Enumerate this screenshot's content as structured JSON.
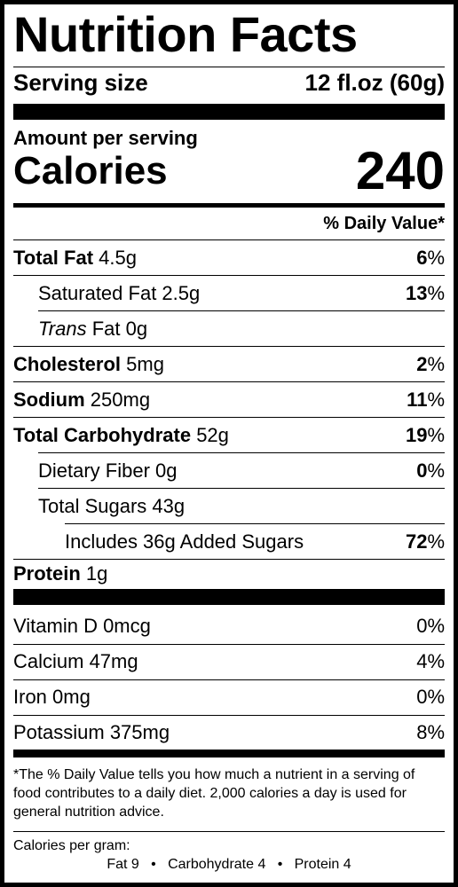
{
  "title": "Nutrition Facts",
  "serving": {
    "label": "Serving size",
    "value": "12 fl.oz (60g)"
  },
  "amount_per_serving": "Amount per serving",
  "calories": {
    "label": "Calories",
    "value": "240"
  },
  "dv_header": "% Daily Value*",
  "nutrients": {
    "total_fat": {
      "label": "Total Fat",
      "amount": "4.5g",
      "dv_num": "6",
      "dv_pct": "%"
    },
    "sat_fat": {
      "label": "Saturated Fat 2.5g",
      "dv_num": "13",
      "dv_pct": "%"
    },
    "trans_fat": {
      "italic": "Trans",
      "label": " Fat 0g"
    },
    "cholesterol": {
      "label": "Cholesterol",
      "amount": "5mg",
      "dv_num": "2",
      "dv_pct": "%"
    },
    "sodium": {
      "label": "Sodium",
      "amount": "250mg",
      "dv_num": "11",
      "dv_pct": "%"
    },
    "total_carb": {
      "label": "Total Carbohydrate",
      "amount": "52g",
      "dv_num": "19",
      "dv_pct": "%"
    },
    "fiber": {
      "label": "Dietary Fiber 0g",
      "dv_num": "0",
      "dv_pct": "%"
    },
    "sugars": {
      "label": "Total Sugars 43g"
    },
    "added_sugars": {
      "label": "Includes 36g Added Sugars",
      "dv_num": "72",
      "dv_pct": "%"
    },
    "protein": {
      "label": "Protein",
      "amount": "1g"
    }
  },
  "vitamins": {
    "vitamin_d": {
      "label": "Vitamin D 0mcg",
      "dv": "0%"
    },
    "calcium": {
      "label": "Calcium 47mg",
      "dv": "4%"
    },
    "iron": {
      "label": "Iron 0mg",
      "dv": "0%"
    },
    "potassium": {
      "label": "Potassium 375mg",
      "dv": "8%"
    }
  },
  "footnote": "*The % Daily Value tells you how much a nutrient in a serving of food contributes to a daily diet. 2,000 calories a day is used for general nutrition advice.",
  "calories_per_gram": {
    "label": "Calories per gram:",
    "detail": "Fat 9   •   Carbohydrate 4   •   Protein 4"
  }
}
